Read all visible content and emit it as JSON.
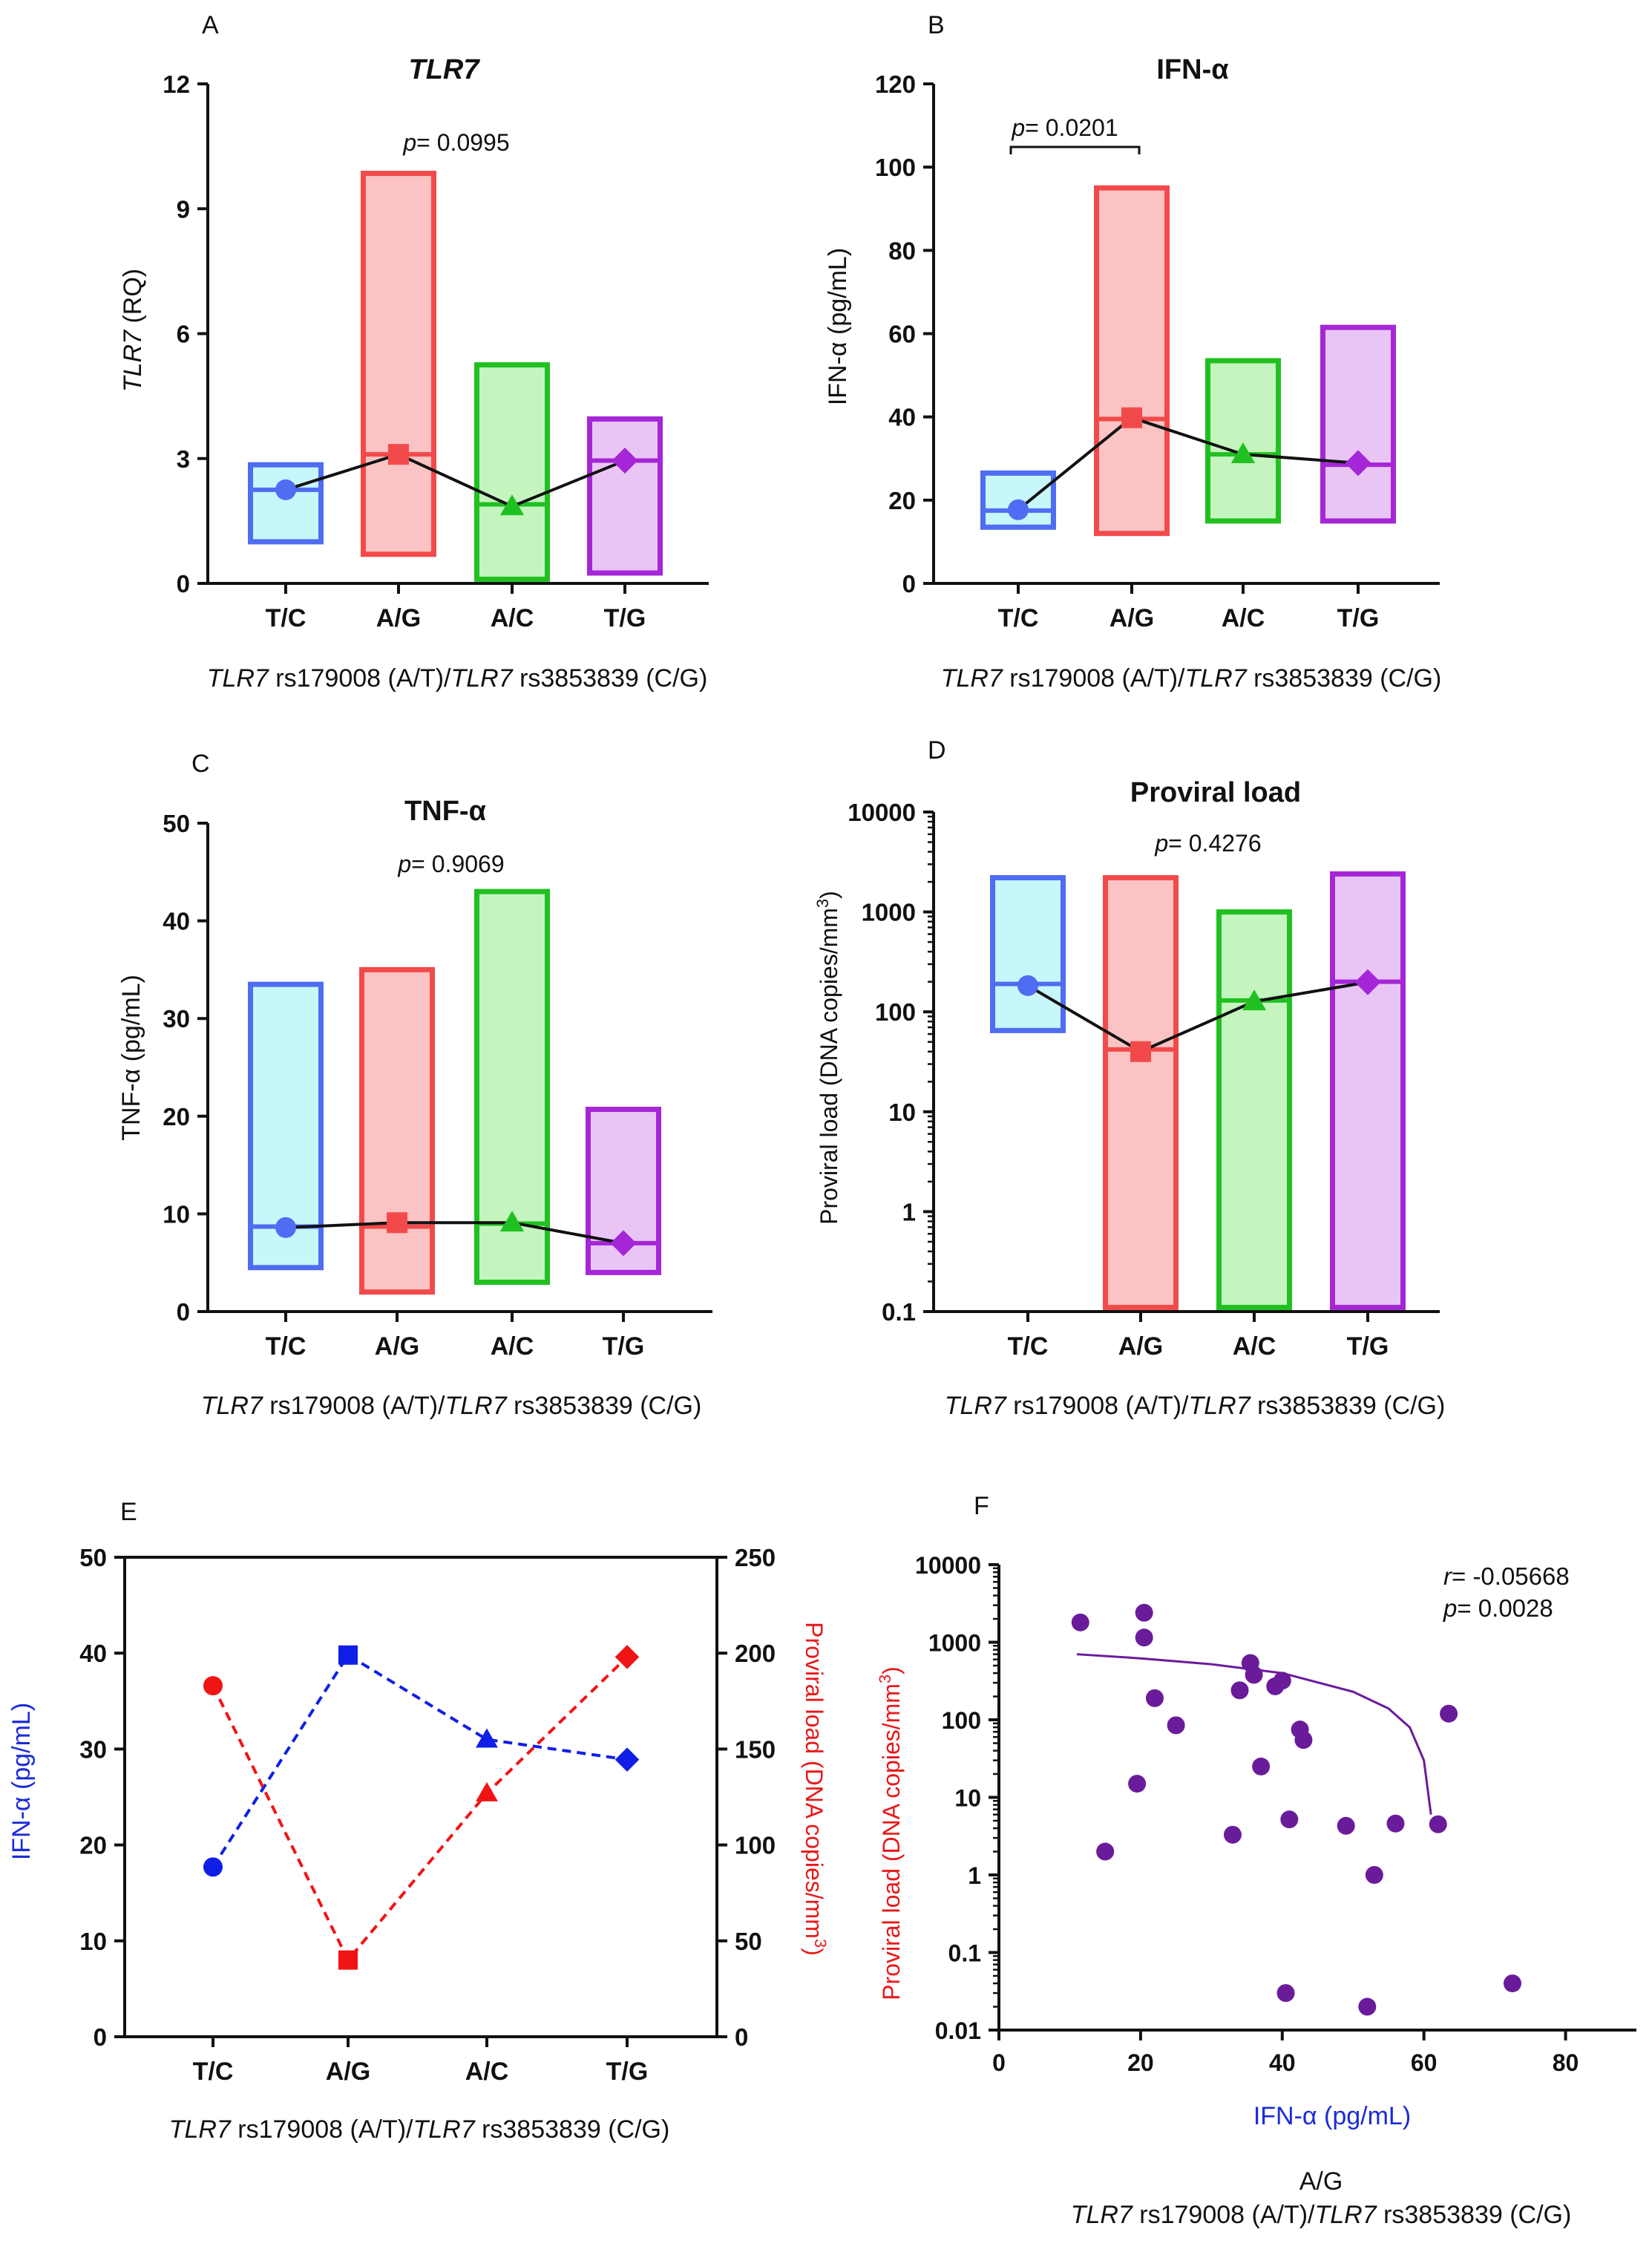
{
  "group_colors": [
    "#4f6cf2",
    "#f24a4a",
    "#21c021",
    "#a526d6"
  ],
  "group_fills": [
    "#c7f6fb",
    "#fbc3c3",
    "#c4f5bf",
    "#e9c5f6"
  ],
  "group_markers": [
    "circle",
    "square",
    "triangle",
    "diamond"
  ],
  "line_color": "#111111",
  "chart_data": [
    {
      "panel": "A",
      "type": "floating-bar",
      "title": "TLR7",
      "title_italic": true,
      "title_bold": true,
      "ylabel": "TLR7 (RQ)",
      "ylabel_italic_part": "TLR7",
      "ylabel_rest": " (RQ)",
      "categories": [
        "T/C",
        "A/G",
        "A/C",
        "T/G"
      ],
      "xlabel_italic_1": "TLR7",
      "xlabel_mid": " rs179008 (A/T)/",
      "xlabel_italic_2": "TLR7",
      "xlabel_end": " rs3853839 (C/G)",
      "yscale": "linear",
      "ylim": [
        0,
        12
      ],
      "yticks": [
        0,
        3,
        6,
        9,
        12
      ],
      "low": [
        1.0,
        0.7,
        0.1,
        0.25
      ],
      "high": [
        2.85,
        9.85,
        5.25,
        3.95
      ],
      "median": [
        2.25,
        3.1,
        1.9,
        2.95
      ],
      "mean": [
        2.25,
        3.1,
        1.85,
        2.95
      ],
      "annotation": {
        "p_label": "p",
        "text": "= 0.0995"
      }
    },
    {
      "panel": "B",
      "type": "floating-bar",
      "title": "IFN-α",
      "title_italic": false,
      "title_bold": true,
      "ylabel": "IFN-α (pg/mL)",
      "categories": [
        "T/C",
        "A/G",
        "A/C",
        "T/G"
      ],
      "xlabel_italic_1": "TLR7",
      "xlabel_mid": " rs179008 (A/T)/",
      "xlabel_italic_2": "TLR7",
      "xlabel_end": " rs3853839 (C/G)",
      "yscale": "linear",
      "ylim": [
        0,
        120
      ],
      "yticks": [
        0,
        20,
        40,
        60,
        80,
        100,
        120
      ],
      "low": [
        13.5,
        12,
        15,
        15
      ],
      "high": [
        26.5,
        95,
        53.5,
        61.5
      ],
      "median": [
        17.5,
        39.5,
        31,
        28.5
      ],
      "mean": [
        17.7,
        39.8,
        31,
        28.9
      ],
      "annotation": {
        "p_label": "p",
        "text": "= 0.0201",
        "bracket": [
          0,
          1
        ]
      }
    },
    {
      "panel": "C",
      "type": "floating-bar",
      "title": "TNF-α",
      "title_italic": false,
      "title_bold": true,
      "ylabel": "TNF-α (pg/mL)",
      "categories": [
        "T/C",
        "A/G",
        "A/C",
        "T/G"
      ],
      "xlabel_italic_1": "TLR7",
      "xlabel_mid": " rs179008 (A/T)/",
      "xlabel_italic_2": "TLR7",
      "xlabel_end": " rs3853839 (C/G)",
      "yscale": "linear",
      "ylim": [
        0,
        50
      ],
      "yticks": [
        0,
        10,
        20,
        30,
        40,
        50
      ],
      "low": [
        4.5,
        2,
        3,
        4
      ],
      "high": [
        33.5,
        35,
        43,
        20.7
      ],
      "median": [
        8.7,
        8.7,
        9,
        7
      ],
      "mean": [
        8.6,
        9.1,
        9.1,
        7
      ],
      "annotation": {
        "p_label": "p",
        "text": "= 0.9069"
      }
    },
    {
      "panel": "D",
      "type": "floating-bar",
      "title": "Proviral load",
      "title_italic": false,
      "title_bold": true,
      "ylabel": "Proviral load (DNA copies/mm",
      "ylabel_sup": "3",
      "ylabel_end": ")",
      "categories": [
        "T/C",
        "A/G",
        "A/C",
        "T/G"
      ],
      "xlabel_italic_1": "TLR7",
      "xlabel_mid": " rs179008 (A/T)/",
      "xlabel_italic_2": "TLR7",
      "xlabel_end": " rs3853839 (C/G)",
      "yscale": "log",
      "ylim": [
        0.1,
        10000
      ],
      "yticks": [
        0.1,
        1,
        10,
        100,
        1000,
        10000
      ],
      "ytick_labels": [
        "0.1",
        "1",
        "10",
        "100",
        "1000",
        "10000"
      ],
      "low": [
        65,
        0.11,
        0.11,
        0.11
      ],
      "high": [
        2200,
        2200,
        1000,
        2400
      ],
      "median": [
        190,
        42,
        130,
        200
      ],
      "mean": [
        183,
        40,
        127,
        198
      ],
      "annotation": {
        "p_label": "p",
        "text": "= 0.4276"
      }
    },
    {
      "panel": "E",
      "type": "line",
      "dual_axis": true,
      "categories": [
        "T/C",
        "A/G",
        "A/C",
        "T/G"
      ],
      "xlabel_italic_1": "TLR7",
      "xlabel_mid": " rs179008 (A/T)/",
      "xlabel_italic_2": "TLR7",
      "xlabel_end": " rs3853839 (C/G)",
      "ylabel_left": "IFN-α (pg/mL)",
      "ylim_left": [
        0,
        50
      ],
      "yticks_left": [
        0,
        10,
        20,
        30,
        40,
        50
      ],
      "ylabel_right": "Proviral load (DNA copies/mm",
      "ylabel_right_sup": "3",
      "ylabel_right_end": ")",
      "ylim_right": [
        0,
        250
      ],
      "yticks_right": [
        0,
        50,
        100,
        150,
        200,
        250
      ],
      "series": [
        {
          "name": "IFN-α",
          "axis": "left",
          "color": "#0f1fe6",
          "values": [
            17.7,
            39.8,
            31,
            28.9
          ]
        },
        {
          "name": "Proviral load",
          "axis": "right",
          "color": "#f01414",
          "values": [
            183,
            40,
            127,
            198
          ]
        }
      ]
    },
    {
      "panel": "F",
      "type": "scatter",
      "xlabel": "IFN-α (pg/mL)",
      "xlim": [
        0,
        90
      ],
      "xticks": [
        0,
        20,
        40,
        60,
        80
      ],
      "ylabel": "Proviral load (DNA copies/mm",
      "ylabel_sup": "3",
      "ylabel_end": ")",
      "yscale": "log",
      "ylim": [
        0.01,
        10000
      ],
      "yticks": [
        0.01,
        0.1,
        1,
        10,
        100,
        1000,
        10000
      ],
      "ytick_labels": [
        "0.01",
        "0.1",
        "1",
        "10",
        "100",
        "1000",
        "10000"
      ],
      "subtitle_1": "A/G",
      "subtitle_2_italic_1": "TLR7",
      "subtitle_2_mid": " rs179008 (A/T)/",
      "subtitle_2_italic_2": "TLR7",
      "subtitle_2_end": " rs3853839 (C/G)",
      "point_color": "#6a1b9a",
      "points": [
        {
          "x": 11.5,
          "y": 1800
        },
        {
          "x": 15,
          "y": 2
        },
        {
          "x": 19.5,
          "y": 15
        },
        {
          "x": 20.5,
          "y": 2400
        },
        {
          "x": 20.5,
          "y": 1150
        },
        {
          "x": 22,
          "y": 190
        },
        {
          "x": 25,
          "y": 85
        },
        {
          "x": 33,
          "y": 3.3
        },
        {
          "x": 34,
          "y": 240
        },
        {
          "x": 35.5,
          "y": 540
        },
        {
          "x": 36,
          "y": 380
        },
        {
          "x": 37,
          "y": 25
        },
        {
          "x": 39,
          "y": 270
        },
        {
          "x": 40,
          "y": 320
        },
        {
          "x": 40.5,
          "y": 0.03
        },
        {
          "x": 41,
          "y": 5.2
        },
        {
          "x": 42.5,
          "y": 75
        },
        {
          "x": 43,
          "y": 55
        },
        {
          "x": 49,
          "y": 4.3
        },
        {
          "x": 52,
          "y": 0.02
        },
        {
          "x": 53,
          "y": 1
        },
        {
          "x": 56,
          "y": 4.6
        },
        {
          "x": 62,
          "y": 4.5
        },
        {
          "x": 63.5,
          "y": 120
        },
        {
          "x": 72.5,
          "y": 0.04
        }
      ],
      "fit": [
        {
          "x": 11,
          "y": 700
        },
        {
          "x": 20,
          "y": 620
        },
        {
          "x": 30,
          "y": 520
        },
        {
          "x": 40,
          "y": 400
        },
        {
          "x": 50,
          "y": 230
        },
        {
          "x": 55,
          "y": 140
        },
        {
          "x": 58,
          "y": 80
        },
        {
          "x": 60,
          "y": 30
        },
        {
          "x": 61,
          "y": 6
        }
      ],
      "annotation": {
        "r_label": "r",
        "r_text": "= -0.05668",
        "p_label": "p",
        "p_text": "= 0.0028"
      }
    }
  ]
}
